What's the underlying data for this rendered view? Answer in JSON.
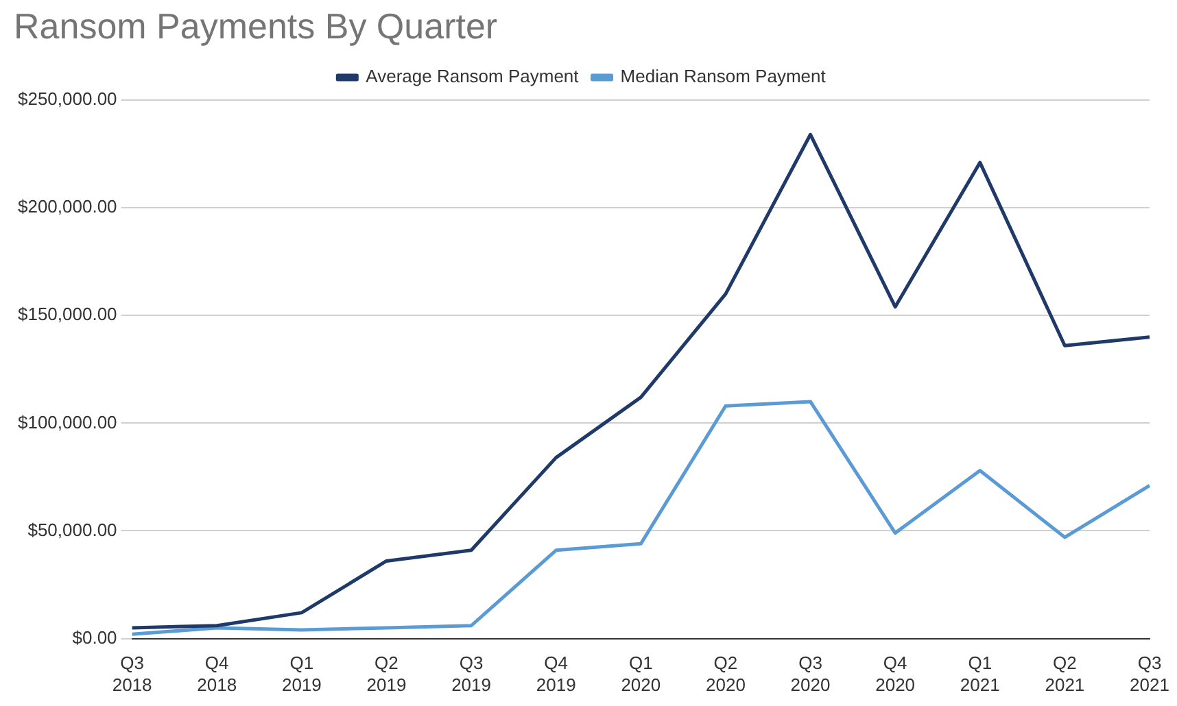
{
  "chart_data": {
    "type": "line",
    "title": "Ransom Payments By Quarter",
    "categories": [
      "Q3 2018",
      "Q4 2018",
      "Q1 2019",
      "Q2 2019",
      "Q3 2019",
      "Q4 2019",
      "Q1 2020",
      "Q2 2020",
      "Q3 2020",
      "Q4 2020",
      "Q1 2021",
      "Q2 2021",
      "Q3 2021"
    ],
    "series": [
      {
        "name": "Average Ransom Payment",
        "color": "#1f3a68",
        "values": [
          5000,
          6000,
          12000,
          36000,
          41000,
          84000,
          112000,
          160000,
          234000,
          154000,
          221000,
          136000,
          140000
        ]
      },
      {
        "name": "Median Ransom Payment",
        "color": "#5b9bd5",
        "values": [
          2000,
          5000,
          4000,
          5000,
          6000,
          41000,
          44000,
          108000,
          110000,
          49000,
          78000,
          47000,
          71000
        ]
      }
    ],
    "ylim": [
      0,
      250000
    ],
    "yticks": [
      {
        "value": 0,
        "label": "$0.00"
      },
      {
        "value": 50000,
        "label": "$50,000.00"
      },
      {
        "value": 100000,
        "label": "$100,000.00"
      },
      {
        "value": 150000,
        "label": "$150,000.00"
      },
      {
        "value": 200000,
        "label": "$200,000.00"
      },
      {
        "value": 250000,
        "label": "$250,000.00"
      }
    ],
    "grid": "y",
    "legend": "top",
    "marker": "none",
    "line_style": "solid"
  }
}
